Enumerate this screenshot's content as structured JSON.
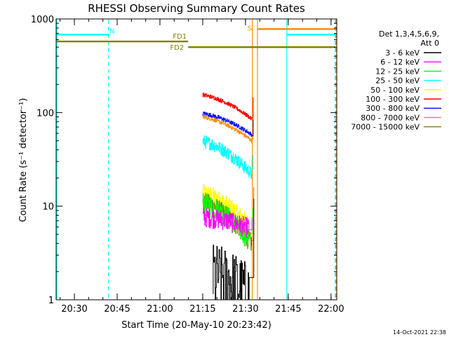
{
  "chart_data": {
    "type": "line",
    "title": "RHESSI Observing Summary Count Rates",
    "xlabel": "Start Time (20-May-10 20:23:42)",
    "ylabel": "Count Rate (s⁻¹ detector⁻¹)",
    "x_unit": "minutes after 20:23:42",
    "x_range": [
      "20:23:42",
      "22:02:00"
    ],
    "ylim": [
      1,
      1000
    ],
    "yscale": "log",
    "x_ticks": [
      {
        "label": "20:30",
        "t": 6.3
      },
      {
        "label": "20:45",
        "t": 21.3
      },
      {
        "label": "21:00",
        "t": 36.3
      },
      {
        "label": "21:15",
        "t": 51.3
      },
      {
        "label": "21:30",
        "t": 66.3
      },
      {
        "label": "21:45",
        "t": 81.3
      },
      {
        "label": "22:00",
        "t": 96.3
      }
    ],
    "y_ticks": [
      {
        "label": "1",
        "v": 1
      },
      {
        "label": "10",
        "v": 10
      },
      {
        "label": "100",
        "v": 100
      },
      {
        "label": "1000",
        "v": 1000
      }
    ],
    "legend_header": [
      "Det 1,3,4,5,6,9,",
      "Att 0"
    ],
    "legend_position": "right",
    "series": [
      {
        "name": "3 - 6 keV",
        "color": "#000000",
        "t_start": 54.8,
        "t_end": 67.5,
        "start": 2.0,
        "end": 1.2,
        "noise": 0.5,
        "step": 0.18,
        "extra": [
          [
            69.2,
            12.0
          ]
        ]
      },
      {
        "name": "6 - 12 keV",
        "color": "#ff00ff",
        "t_start": 51.3,
        "t_end": 67.5,
        "start": 7.8,
        "end": 6.0,
        "noise": 0.12,
        "step": 0.12,
        "extra": [
          [
            68.6,
            7.5
          ]
        ]
      },
      {
        "name": "12 - 25 keV",
        "color": "#00ff00",
        "t_start": 51.3,
        "t_end": 67.5,
        "start": 11.0,
        "end": 4.5,
        "noise": 0.14,
        "step": 0.12,
        "extra": [
          [
            68.8,
            9.5
          ]
        ]
      },
      {
        "name": "25 - 50 keV",
        "color": "#00ffff",
        "t_start": 51.3,
        "t_end": 68.5,
        "start": 50.0,
        "end": 22.0,
        "noise": 0.08,
        "step": 0.1,
        "extra": [
          [
            68.9,
            35.0
          ]
        ]
      },
      {
        "name": "50 - 100 keV",
        "color": "#ffff00",
        "t_start": 51.3,
        "t_end": 67.0,
        "start": 14.0,
        "end": 6.5,
        "noise": 0.12,
        "step": 0.1
      },
      {
        "name": "100 - 300 keV",
        "color": "#ff0000",
        "t_start": 51.3,
        "t_end": 68.5,
        "start": 155.0,
        "end": 85.0,
        "noise": 0.025,
        "step": 0.1,
        "extra": [
          [
            69.0,
            145.0
          ]
        ]
      },
      {
        "name": "300 - 800 keV",
        "color": "#0000ff",
        "t_start": 51.3,
        "t_end": 68.5,
        "start": 98.0,
        "end": 58.0,
        "noise": 0.025,
        "step": 0.1,
        "extra": [
          [
            69.0,
            85.0
          ]
        ]
      },
      {
        "name": "800 - 7000 keV",
        "color": "#ff8c00",
        "t_start": 51.3,
        "t_end": 68.5,
        "start": 90.0,
        "end": 50.0,
        "noise": 0.025,
        "step": 0.1,
        "extra": [
          [
            69.0,
            90.0
          ]
        ]
      },
      {
        "name": "7000 - 15000 keV",
        "color": "#808000",
        "t_start": 51.3,
        "t_end": 68.5,
        "start": 11.5,
        "end": 4.0,
        "noise": 0.12,
        "step": 0.1,
        "extra": [
          [
            69.2,
            16.0
          ]
        ]
      }
    ],
    "annotations": {
      "night_intervals": [
        {
          "label": "N",
          "t_start": -0.1,
          "t_end": 18.3,
          "level": 680,
          "color": "#00ffff"
        },
        {
          "label": "",
          "t_start": 80.8,
          "t_end": 97.8,
          "level": 680,
          "color": "#00ffff"
        }
      ],
      "saa_intervals": [
        {
          "label": "S",
          "t_start": 70.5,
          "t_end": 97.8,
          "level": 780,
          "color": "#ff8c00"
        }
      ],
      "flare_intervals": [
        {
          "label": "FD1",
          "t_start": -0.1,
          "t_end": 46.2,
          "level": 575,
          "color": "#808000"
        },
        {
          "label": "FD2",
          "t_start": 46.2,
          "t_end": 97.8,
          "level": 500,
          "color": "#808000"
        }
      ],
      "vertical_lines": [
        {
          "t": -0.1,
          "color": "#00ffff",
          "style": "solid"
        },
        {
          "t": 18.3,
          "color": "#00ffff",
          "style": "dashed"
        },
        {
          "t": 68.7,
          "color": "#ff8c00",
          "style": "solid"
        },
        {
          "t": 70.5,
          "color": "#ff8c00",
          "style": "solid"
        },
        {
          "t": 80.8,
          "color": "#00ffff",
          "style": "solid"
        },
        {
          "t": 97.8,
          "color": "#00ffff",
          "style": "dashed"
        },
        {
          "t": 98.0,
          "color": "#ff8c00",
          "style": "dashed"
        }
      ]
    },
    "footer_date": "14-Oct-2021 22:38"
  }
}
